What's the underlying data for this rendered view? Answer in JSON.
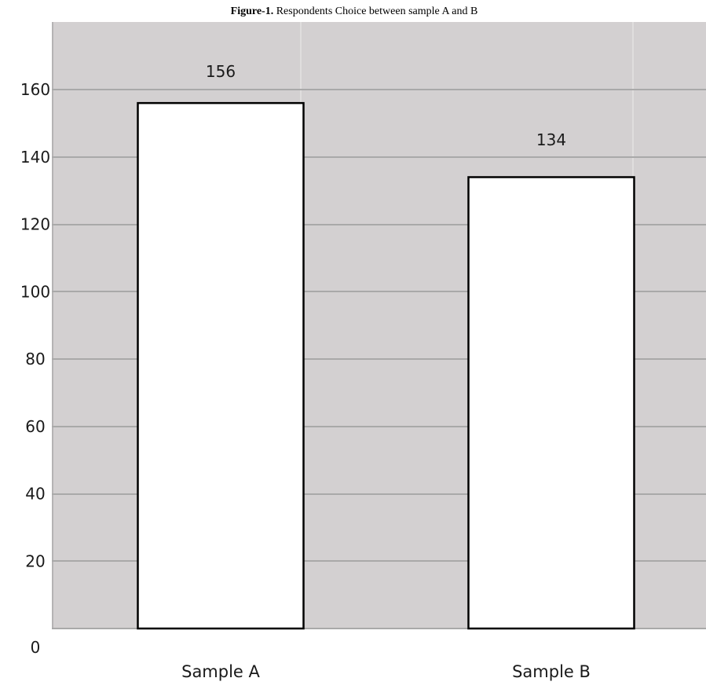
{
  "figure": {
    "caption_prefix": "Figure-1.",
    "caption_text": " Respondents Choice between sample A and B"
  },
  "colors": {
    "plot_background": "#d3d0d1",
    "gridline": "#a9a9a9",
    "vertical_divider": "#ececec",
    "bar_fill": "#ffffff",
    "bar_stroke": "#000000",
    "text": "#1a1a1a"
  },
  "chart_data": {
    "type": "bar",
    "title": "Respondents Choice between sample A and B",
    "categories": [
      "Sample A",
      "Sample B"
    ],
    "values": [
      156,
      134
    ],
    "data_labels": [
      "156",
      "134"
    ],
    "xlabel": "",
    "ylabel": "",
    "ylim": [
      0,
      160
    ],
    "yticks": [
      0,
      20,
      40,
      60,
      80,
      100,
      120,
      140,
      160
    ],
    "ytick_labels": [
      "0",
      "20",
      "40",
      "60",
      "80",
      "100",
      "120",
      "140",
      "160"
    ],
    "grid": true,
    "legend": "none"
  }
}
